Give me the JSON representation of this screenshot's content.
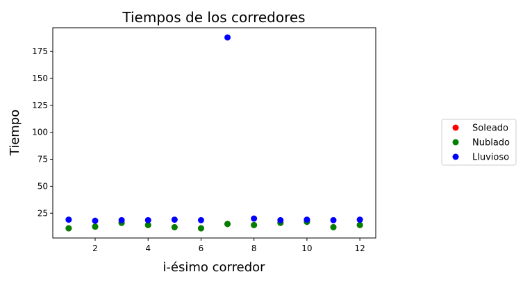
{
  "chart_data": {
    "type": "scatter",
    "title": "Tiempos de los corredores",
    "xlabel": "i-ésimo corredor",
    "ylabel": "Tiempo",
    "xlim": [
      0.4,
      12.6
    ],
    "ylim": [
      2,
      197
    ],
    "xticks": [
      2,
      4,
      6,
      8,
      10,
      12
    ],
    "yticks": [
      25,
      50,
      75,
      100,
      125,
      150,
      175
    ],
    "grid": false,
    "legend_position": "outside-right",
    "x": [
      1,
      2,
      3,
      4,
      5,
      6,
      7,
      8,
      9,
      10,
      11,
      12
    ],
    "series": [
      {
        "name": "Soleado",
        "color": "#ff0000",
        "values": [
          11,
          12.5,
          16,
          14,
          12,
          11,
          15,
          14,
          16,
          17,
          12,
          14
        ]
      },
      {
        "name": "Nublado",
        "color": "#008000",
        "values": [
          11,
          12.5,
          16,
          14,
          12,
          11,
          15,
          14,
          16,
          17,
          12,
          14
        ]
      },
      {
        "name": "Lluvioso",
        "color": "#0000ff",
        "values": [
          19,
          18,
          18.5,
          18.5,
          19,
          18.5,
          188,
          20,
          18.5,
          19,
          18.5,
          19
        ]
      }
    ]
  }
}
